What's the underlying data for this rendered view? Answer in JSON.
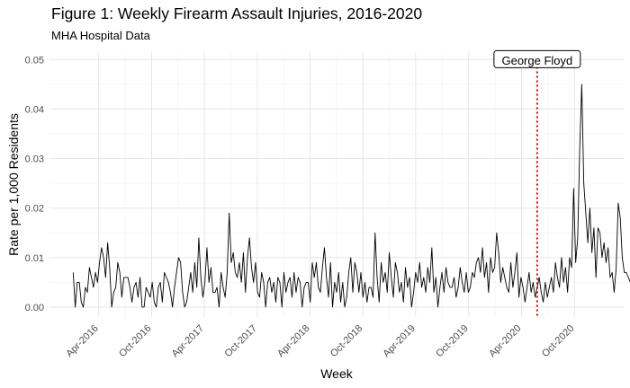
{
  "chart_data": {
    "type": "line",
    "title": "Figure 1: Weekly Firearm Assault Injuries, 2016-2020",
    "subtitle": "MHA Hospital Data",
    "xlabel": "Week",
    "ylabel": "Rate per 1,000 Residents",
    "x_start": "2016-01-04",
    "x_end": "2020-12-28",
    "week_step_days": 7,
    "ylim": [
      -0.002,
      0.0515
    ],
    "yticks": [
      "0.00",
      "0.01",
      "0.02",
      "0.03",
      "0.04",
      "0.05"
    ],
    "ytick_values": [
      0,
      0.01,
      0.02,
      0.03,
      0.04,
      0.05
    ],
    "xticks": [
      {
        "label": "Apr-2016",
        "date": "2016-04-01"
      },
      {
        "label": "Oct-2016",
        "date": "2016-10-01"
      },
      {
        "label": "Apr-2017",
        "date": "2017-04-01"
      },
      {
        "label": "Oct-2017",
        "date": "2017-10-01"
      },
      {
        "label": "Apr-2018",
        "date": "2018-04-01"
      },
      {
        "label": "Oct-2018",
        "date": "2018-10-01"
      },
      {
        "label": "Apr-2019",
        "date": "2019-04-01"
      },
      {
        "label": "Oct-2019",
        "date": "2019-10-01"
      },
      {
        "label": "Apr-2020",
        "date": "2020-04-01"
      },
      {
        "label": "Oct-2020",
        "date": "2020-10-01"
      }
    ],
    "annotation": {
      "label": "George Floyd",
      "date": "2020-05-25",
      "line_color": "#cc0000",
      "line_style": "dotted"
    },
    "series_color": "#000000",
    "grid": true,
    "values": [
      0.007,
      0.0,
      0.005,
      0.005,
      0.001,
      0.0,
      0.004,
      0.003,
      0.008,
      0.006,
      0.004,
      0.007,
      0.005,
      0.009,
      0.012,
      0.01,
      0.006,
      0.013,
      0.008,
      0.0,
      0.003,
      0.004,
      0.009,
      0.007,
      0.002,
      0.006,
      0.006,
      0.006,
      0.004,
      0.001,
      0.004,
      0.005,
      0.002,
      0.006,
      0.0,
      0.0,
      0.004,
      0.003,
      0.002,
      0.005,
      0.001,
      0.0,
      0.004,
      0.005,
      0.001,
      0.007,
      0.006,
      0.005,
      0.003,
      0.0,
      0.004,
      0.007,
      0.01,
      0.009,
      0.003,
      0.0,
      0.001,
      0.004,
      0.007,
      0.003,
      0.009,
      0.004,
      0.014,
      0.006,
      0.002,
      0.005,
      0.012,
      0.005,
      0.008,
      0.003,
      0.003,
      0.004,
      0.0,
      0.007,
      0.004,
      0.002,
      0.007,
      0.019,
      0.009,
      0.011,
      0.007,
      0.006,
      0.009,
      0.005,
      0.011,
      0.003,
      0.01,
      0.014,
      0.008,
      0.005,
      0.009,
      0.003,
      0.002,
      0.007,
      0.005,
      0.0,
      0.005,
      0.006,
      0.003,
      0.005,
      0.001,
      0.006,
      0.005,
      0.0,
      0.007,
      0.003,
      0.005,
      0.006,
      0.002,
      0.007,
      0.003,
      0.006,
      0.005,
      0.0,
      0.004,
      0.005,
      0.005,
      0.001,
      0.009,
      0.006,
      0.009,
      0.004,
      0.003,
      0.008,
      0.012,
      0.006,
      0.002,
      0.009,
      0.0,
      0.005,
      0.003,
      0.007,
      0.001,
      0.005,
      0.0,
      0.002,
      0.007,
      0.01,
      0.003,
      0.009,
      0.007,
      0.003,
      0.007,
      0.002,
      0.005,
      0.001,
      0.004,
      0.004,
      0.002,
      0.015,
      0.006,
      0.001,
      0.009,
      0.005,
      0.007,
      0.003,
      0.011,
      0.006,
      0.002,
      0.009,
      0.007,
      0.003,
      0.005,
      0.001,
      0.008,
      0.004,
      0.006,
      0.0,
      0.003,
      0.007,
      0.005,
      0.009,
      0.004,
      0.006,
      0.003,
      0.008,
      0.005,
      0.012,
      0.003,
      0.006,
      0.0,
      0.004,
      0.007,
      0.003,
      0.008,
      0.005,
      0.004,
      0.004,
      0.006,
      0.002,
      0.004,
      0.008,
      0.005,
      0.003,
      0.007,
      0.003,
      0.004,
      0.007,
      0.006,
      0.009,
      0.01,
      0.007,
      0.012,
      0.006,
      0.009,
      0.003,
      0.01,
      0.007,
      0.008,
      0.015,
      0.011,
      0.005,
      0.008,
      0.006,
      0.004,
      0.003,
      0.009,
      0.004,
      0.007,
      0.011,
      0.002,
      0.006,
      0.004,
      0.001,
      0.004,
      0.007,
      0.003,
      0.005,
      0.002,
      0.004,
      0.006,
      0.003,
      0.001,
      0.005,
      0.002,
      0.004,
      0.006,
      0.003,
      0.009,
      0.006,
      0.004,
      0.01,
      0.005,
      0.008,
      0.003,
      0.01,
      0.008,
      0.024,
      0.009,
      0.014,
      0.032,
      0.045,
      0.025,
      0.019,
      0.013,
      0.02,
      0.011,
      0.016,
      0.006,
      0.016,
      0.015,
      0.01,
      0.013,
      0.009,
      0.012,
      0.006,
      0.007,
      0.003,
      0.008,
      0.021,
      0.018,
      0.01,
      0.007,
      0.007,
      0.006,
      0.005,
      0.007,
      0.005,
      0.006,
      0.002
    ]
  }
}
